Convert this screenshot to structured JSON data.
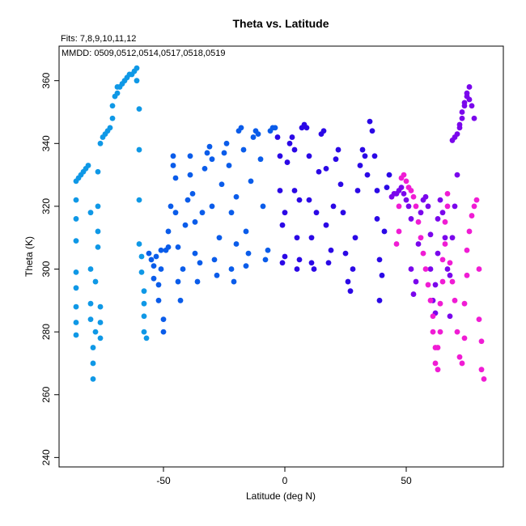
{
  "chart_data": {
    "type": "scatter",
    "title": "Theta vs. Latitude",
    "annotations": [
      "Fits: 7,8,9,10,11,12",
      "MMDD: 0509,0512,0514,0517,0518,0519"
    ],
    "xlabel": "Latitude (deg N)",
    "ylabel": "Theta (K)",
    "xlim": [
      -93,
      90
    ],
    "ylim": [
      237,
      371
    ],
    "xticks": [
      -50,
      0,
      50
    ],
    "xtick_labels": [
      "-50",
      "0",
      "50"
    ],
    "yticks": [
      240,
      260,
      280,
      300,
      320,
      340,
      360
    ],
    "ytick_labels": [
      "240",
      "260",
      "280",
      "300",
      "320",
      "340",
      "360"
    ],
    "grid": false,
    "legend": "none",
    "series": [
      {
        "color": "#0f98e6",
        "points": [
          [
            -86,
            279
          ],
          [
            -86,
            283
          ],
          [
            -86,
            288
          ],
          [
            -86,
            294
          ],
          [
            -86,
            299
          ],
          [
            -86,
            309
          ],
          [
            -86,
            316
          ],
          [
            -86,
            322
          ],
          [
            -86,
            328
          ],
          [
            -85,
            329
          ],
          [
            -84,
            330
          ],
          [
            -83,
            331
          ],
          [
            -82,
            332
          ],
          [
            -81,
            333
          ],
          [
            -80,
            318
          ],
          [
            -80,
            300
          ],
          [
            -80,
            289
          ],
          [
            -80,
            284
          ],
          [
            -79,
            275
          ],
          [
            -79,
            270
          ],
          [
            -79,
            265
          ],
          [
            -78,
            280
          ],
          [
            -78,
            296
          ],
          [
            -77,
            307
          ],
          [
            -77,
            312
          ],
          [
            -77,
            320
          ],
          [
            -77,
            331
          ],
          [
            -76,
            340
          ],
          [
            -76,
            288
          ],
          [
            -76,
            283
          ],
          [
            -76,
            278
          ],
          [
            -75,
            342
          ],
          [
            -74,
            343
          ],
          [
            -73,
            344
          ],
          [
            -72,
            345
          ],
          [
            -71,
            348
          ],
          [
            -71,
            352
          ],
          [
            -70,
            355
          ],
          [
            -69,
            356
          ],
          [
            -69,
            358
          ],
          [
            -68,
            358
          ],
          [
            -67,
            359
          ],
          [
            -66,
            360
          ],
          [
            -65,
            361
          ],
          [
            -64,
            362
          ],
          [
            -63,
            362
          ],
          [
            -62,
            363
          ],
          [
            -61,
            364
          ],
          [
            -61,
            360
          ],
          [
            -60,
            351
          ],
          [
            -60,
            338
          ],
          [
            -60,
            322
          ],
          [
            -60,
            308
          ],
          [
            -59,
            304
          ],
          [
            -59,
            299
          ],
          [
            -58,
            293
          ],
          [
            -58,
            289
          ],
          [
            -58,
            285
          ],
          [
            -58,
            280
          ],
          [
            -57,
            278
          ]
        ]
      },
      {
        "color": "#0a5cea",
        "points": [
          [
            -56,
            305
          ],
          [
            -55,
            303
          ],
          [
            -54,
            301
          ],
          [
            -54,
            297
          ],
          [
            -53,
            304
          ],
          [
            -52,
            295
          ],
          [
            -52,
            290
          ],
          [
            -51,
            306
          ],
          [
            -51,
            300
          ],
          [
            -50,
            284
          ],
          [
            -50,
            280
          ],
          [
            -49,
            306
          ],
          [
            -48,
            307
          ],
          [
            -48,
            312
          ],
          [
            -47,
            320
          ],
          [
            -46,
            336
          ],
          [
            -46,
            333
          ],
          [
            -45,
            329
          ],
          [
            -45,
            318
          ],
          [
            -44,
            307
          ],
          [
            -44,
            296
          ],
          [
            -43,
            290
          ],
          [
            -42,
            300
          ],
          [
            -41,
            314
          ],
          [
            -40,
            322
          ],
          [
            -39,
            336
          ],
          [
            -39,
            330
          ],
          [
            -38,
            324
          ],
          [
            -37,
            315
          ],
          [
            -37,
            305
          ],
          [
            -36,
            296
          ],
          [
            -35,
            302
          ],
          [
            -34,
            318
          ],
          [
            -33,
            332
          ],
          [
            -32,
            337
          ],
          [
            -31,
            339
          ],
          [
            -30,
            335
          ],
          [
            -30,
            320
          ],
          [
            -29,
            303
          ],
          [
            -28,
            298
          ],
          [
            -27,
            310
          ],
          [
            -26,
            327
          ],
          [
            -25,
            337
          ],
          [
            -24,
            340
          ],
          [
            -23,
            333
          ],
          [
            -22,
            318
          ],
          [
            -22,
            300
          ],
          [
            -21,
            296
          ],
          [
            -20,
            308
          ],
          [
            -20,
            323
          ],
          [
            -19,
            344
          ],
          [
            -18,
            345
          ],
          [
            -17,
            338
          ],
          [
            -16,
            312
          ],
          [
            -16,
            301
          ],
          [
            -15,
            305
          ],
          [
            -14,
            328
          ],
          [
            -13,
            342
          ],
          [
            -12,
            344
          ],
          [
            -11,
            343
          ],
          [
            -10,
            335
          ],
          [
            -9,
            320
          ],
          [
            -8,
            303
          ],
          [
            -7,
            306
          ],
          [
            -6,
            344
          ],
          [
            -5,
            345
          ],
          [
            -4,
            345
          ]
        ]
      },
      {
        "color": "#2b08e6",
        "points": [
          [
            -3,
            342
          ],
          [
            -2,
            336
          ],
          [
            -2,
            325
          ],
          [
            -1,
            314
          ],
          [
            -1,
            302
          ],
          [
            0,
            304
          ],
          [
            0,
            318
          ],
          [
            1,
            334
          ],
          [
            2,
            340
          ],
          [
            3,
            342
          ],
          [
            4,
            338
          ],
          [
            4,
            325
          ],
          [
            5,
            310
          ],
          [
            5,
            300
          ],
          [
            6,
            303
          ],
          [
            6,
            322
          ],
          [
            7,
            345
          ],
          [
            8,
            346
          ],
          [
            9,
            345
          ],
          [
            10,
            336
          ],
          [
            10,
            322
          ],
          [
            11,
            310
          ],
          [
            11,
            302
          ],
          [
            12,
            300
          ],
          [
            13,
            318
          ],
          [
            14,
            331
          ],
          [
            15,
            343
          ],
          [
            16,
            344
          ],
          [
            17,
            332
          ],
          [
            17,
            314
          ],
          [
            18,
            302
          ],
          [
            19,
            306
          ],
          [
            20,
            320
          ],
          [
            21,
            335
          ],
          [
            22,
            338
          ],
          [
            23,
            327
          ],
          [
            24,
            318
          ],
          [
            25,
            305
          ],
          [
            26,
            296
          ],
          [
            27,
            293
          ],
          [
            28,
            300
          ],
          [
            29,
            310
          ],
          [
            30,
            325
          ],
          [
            31,
            333
          ],
          [
            32,
            338
          ],
          [
            33,
            336
          ],
          [
            34,
            330
          ],
          [
            35,
            347
          ],
          [
            36,
            344
          ],
          [
            37,
            336
          ],
          [
            38,
            325
          ],
          [
            38,
            316
          ],
          [
            39,
            303
          ],
          [
            39,
            290
          ],
          [
            40,
            298
          ],
          [
            41,
            312
          ],
          [
            42,
            326
          ],
          [
            43,
            330
          ]
        ]
      },
      {
        "color": "#7a06ec",
        "points": [
          [
            44,
            323
          ],
          [
            45,
            324
          ],
          [
            46,
            324
          ],
          [
            47,
            325
          ],
          [
            48,
            326
          ],
          [
            49,
            324
          ],
          [
            50,
            322
          ],
          [
            51,
            320
          ],
          [
            52,
            316
          ],
          [
            52,
            300
          ],
          [
            53,
            292
          ],
          [
            54,
            296
          ],
          [
            55,
            308
          ],
          [
            56,
            318
          ],
          [
            57,
            322
          ],
          [
            58,
            323
          ],
          [
            59,
            320
          ],
          [
            60,
            311
          ],
          [
            60,
            300
          ],
          [
            61,
            290
          ],
          [
            62,
            286
          ],
          [
            62,
            295
          ],
          [
            63,
            305
          ],
          [
            63,
            316
          ],
          [
            64,
            322
          ],
          [
            65,
            318
          ],
          [
            66,
            310
          ],
          [
            67,
            300
          ],
          [
            68,
            285
          ],
          [
            68,
            298
          ],
          [
            69,
            310
          ],
          [
            70,
            320
          ],
          [
            71,
            330
          ],
          [
            72,
            345
          ],
          [
            73,
            350
          ],
          [
            74,
            353
          ],
          [
            75,
            355
          ],
          [
            76,
            354
          ],
          [
            77,
            352
          ],
          [
            78,
            348
          ],
          [
            76,
            358
          ],
          [
            75,
            356
          ],
          [
            74,
            352
          ],
          [
            73,
            348
          ],
          [
            72,
            346
          ],
          [
            71,
            343
          ],
          [
            70,
            342
          ],
          [
            69,
            341
          ]
        ]
      },
      {
        "color": "#f01cd4",
        "points": [
          [
            46,
            308
          ],
          [
            47,
            312
          ],
          [
            47,
            320
          ],
          [
            48,
            329
          ],
          [
            49,
            330
          ],
          [
            50,
            328
          ],
          [
            51,
            326
          ],
          [
            52,
            325
          ],
          [
            53,
            323
          ],
          [
            54,
            320
          ],
          [
            55,
            315
          ],
          [
            56,
            310
          ],
          [
            57,
            305
          ],
          [
            58,
            300
          ],
          [
            59,
            295
          ],
          [
            60,
            290
          ],
          [
            61,
            285
          ],
          [
            61,
            280
          ],
          [
            62,
            275
          ],
          [
            62,
            270
          ],
          [
            63,
            268
          ],
          [
            63,
            275
          ],
          [
            64,
            280
          ],
          [
            64,
            289
          ],
          [
            65,
            296
          ],
          [
            65,
            303
          ],
          [
            66,
            308
          ],
          [
            66,
            315
          ],
          [
            67,
            320
          ],
          [
            67,
            324
          ],
          [
            68,
            302
          ],
          [
            69,
            296
          ],
          [
            70,
            290
          ],
          [
            71,
            280
          ],
          [
            72,
            272
          ],
          [
            73,
            270
          ],
          [
            74,
            278
          ],
          [
            74,
            289
          ],
          [
            75,
            298
          ],
          [
            75,
            306
          ],
          [
            76,
            312
          ],
          [
            77,
            317
          ],
          [
            78,
            320
          ],
          [
            79,
            322
          ],
          [
            80,
            300
          ],
          [
            80,
            284
          ],
          [
            81,
            277
          ],
          [
            81,
            268
          ],
          [
            82,
            265
          ]
        ]
      }
    ]
  }
}
